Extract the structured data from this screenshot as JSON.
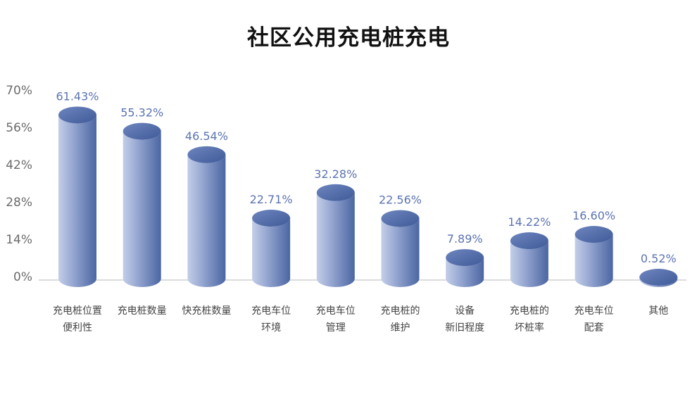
{
  "chart_data": {
    "type": "bar",
    "title": "社区公用充电桩充电",
    "xlabel": "",
    "ylabel": "",
    "ylim": [
      0,
      70
    ],
    "yticks": [
      "0%",
      "14%",
      "28%",
      "42%",
      "56%",
      "70%"
    ],
    "ytick_values": [
      0,
      14,
      28,
      42,
      56,
      70
    ],
    "grid": false,
    "legend": "none",
    "categories": [
      [
        "充电桩位置",
        "便利性"
      ],
      [
        "充电桩数量"
      ],
      [
        "快充桩数量"
      ],
      [
        "充电车位",
        "环境"
      ],
      [
        "充电车位",
        "管理"
      ],
      [
        "充电桩的",
        "维护"
      ],
      [
        "设备",
        "新旧程度"
      ],
      [
        "充电桩的",
        "坏桩率"
      ],
      [
        "充电车位",
        "配套"
      ],
      [
        "其他"
      ]
    ],
    "values": [
      61.43,
      55.32,
      46.54,
      22.71,
      32.28,
      22.56,
      7.89,
      14.22,
      16.6,
      0.52
    ],
    "value_labels": [
      "61.43%",
      "55.32%",
      "46.54%",
      "22.71%",
      "32.28%",
      "22.56%",
      "7.89%",
      "14.22%",
      "16.60%",
      "0.52%"
    ],
    "colors": {
      "bar_dark": "#4a67a6",
      "bar_light": "#bfcbe6",
      "bar_mid": "#8ea1cf",
      "value_label": "#5c73b2",
      "axis": "#c8c8c8"
    }
  }
}
